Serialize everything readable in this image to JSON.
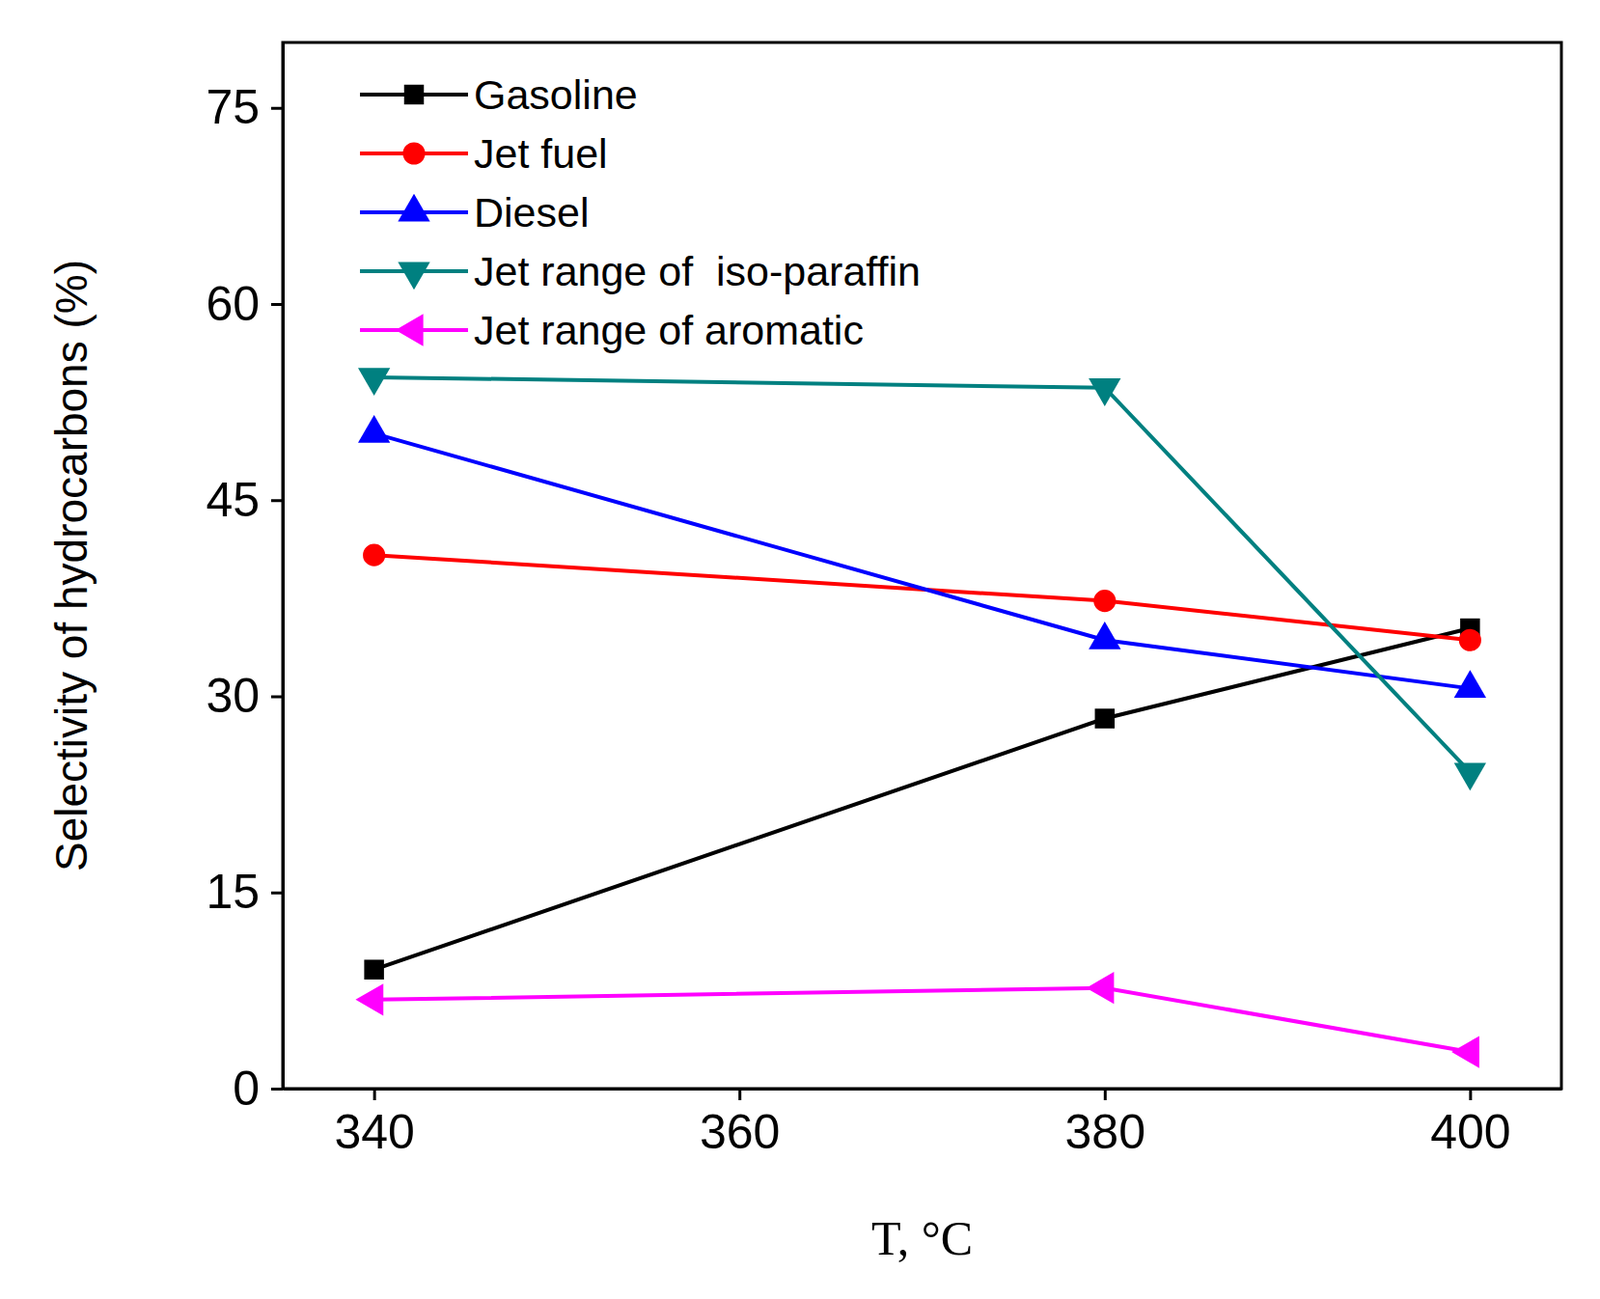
{
  "chart_data": {
    "type": "line",
    "xlabel": "T, °C",
    "ylabel": "Selectivity of hydrocarbons (%)",
    "x": [
      340,
      380,
      400
    ],
    "xlim": [
      335,
      405
    ],
    "xticks": [
      340,
      360,
      380,
      400
    ],
    "ylim": [
      0,
      80
    ],
    "yticks": [
      0,
      15,
      30,
      45,
      60,
      75
    ],
    "legend": "upper left",
    "grid": false,
    "series": [
      {
        "name": "Gasoline",
        "color": "#000000",
        "marker": "square",
        "line_style": "solid",
        "values": [
          9.1,
          28.3,
          35.2
        ]
      },
      {
        "name": "Jet fuel",
        "color": "#ff0000",
        "marker": "circle",
        "line_style": "solid",
        "values": [
          40.8,
          37.3,
          34.3
        ]
      },
      {
        "name": "Diesel",
        "color": "#0000ff",
        "marker": "triangle-up",
        "line_style": "solid",
        "values": [
          50.1,
          34.3,
          30.6
        ]
      },
      {
        "name": "Jet range of  iso-paraffin",
        "color": "#008080",
        "marker": "triangle-down",
        "line_style": "solid",
        "values": [
          54.4,
          53.6,
          24.2
        ]
      },
      {
        "name": "Jet range of aromatic",
        "color": "#ff00ff",
        "marker": "triangle-left",
        "line_style": "solid",
        "values": [
          6.8,
          7.7,
          2.8
        ]
      }
    ]
  }
}
